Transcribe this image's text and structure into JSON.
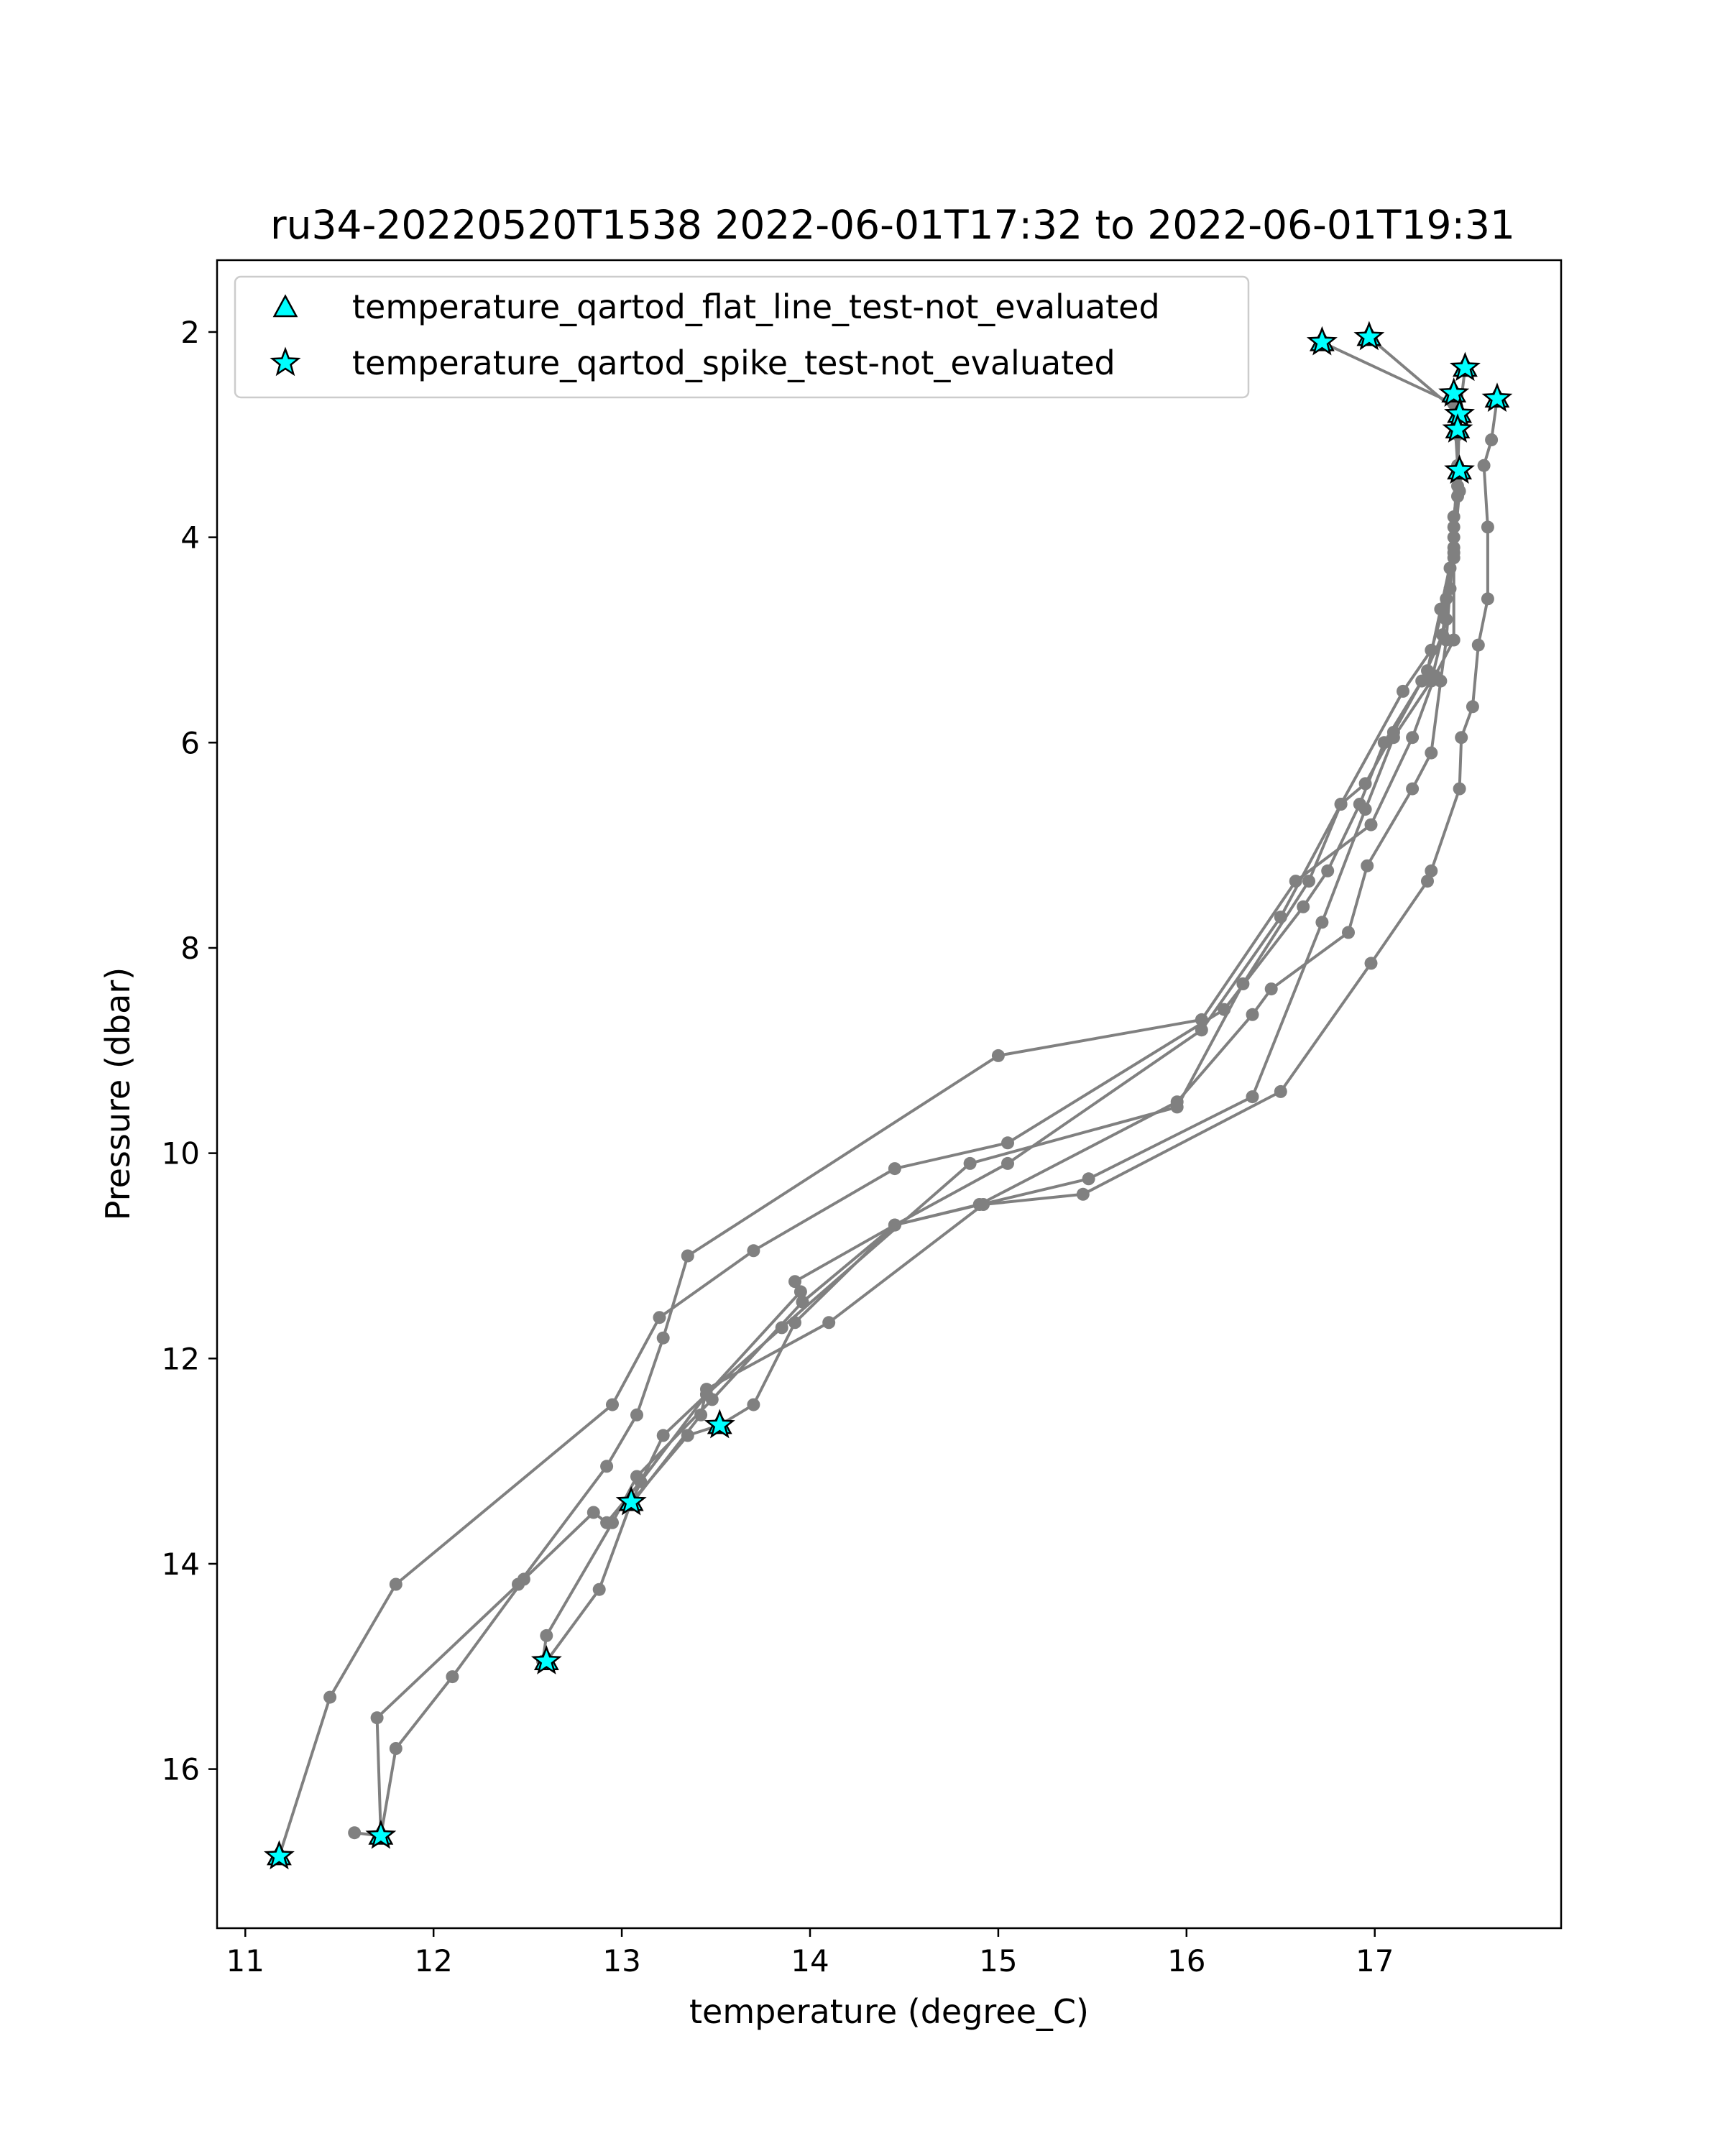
{
  "chart_data": {
    "type": "line",
    "title": "ru34-20220520T1538 2022-06-01T17:32 to 2022-06-01T19:31",
    "xlabel": "temperature (degree_C)",
    "ylabel": "Pressure (dbar)",
    "xlim": [
      10.85,
      17.99
    ],
    "ylim": [
      17.55,
      1.3
    ],
    "y_inverted": true,
    "grid": false,
    "legend_placement": "upper-left",
    "x_ticks": [
      "11",
      "12",
      "13",
      "14",
      "15",
      "16",
      "17"
    ],
    "y_ticks": [
      "2",
      "4",
      "6",
      "8",
      "10",
      "12",
      "14",
      "16"
    ],
    "colors": {
      "profile_line": "#808080",
      "flag_fill": "#00ffff",
      "flag_edge": "#000000"
    },
    "legend": [
      {
        "marker": "triangle",
        "label": "temperature_qartod_flat_line_test-not_evaluated"
      },
      {
        "marker": "star",
        "label": "temperature_qartod_spike_test-not_evaluated"
      }
    ],
    "profiles": [
      {
        "points": [
          [
            16.72,
            2.1
          ],
          [
            17.42,
            2.7
          ],
          [
            17.44,
            3.3
          ],
          [
            17.42,
            3.9
          ],
          [
            17.4,
            4.5
          ],
          [
            17.38,
            5.0
          ],
          [
            17.35,
            5.4
          ],
          [
            17.3,
            6.1
          ],
          [
            17.2,
            6.45
          ],
          [
            16.96,
            7.2
          ],
          [
            16.86,
            7.85
          ],
          [
            16.45,
            8.4
          ],
          [
            16.35,
            8.65
          ],
          [
            15.95,
            9.5
          ],
          [
            14.9,
            10.5
          ],
          [
            14.45,
            10.7
          ],
          [
            13.92,
            11.65
          ],
          [
            13.7,
            12.45
          ],
          [
            13.52,
            12.65
          ],
          [
            13.35,
            12.75
          ],
          [
            13.05,
            13.4
          ],
          [
            12.88,
            14.25
          ],
          [
            12.6,
            14.95
          ]
        ]
      },
      {
        "points": [
          [
            16.97,
            2.05
          ],
          [
            17.45,
            2.8
          ],
          [
            17.44,
            3.4
          ],
          [
            17.42,
            4.0
          ],
          [
            17.38,
            4.6
          ],
          [
            17.3,
            5.1
          ],
          [
            17.15,
            5.5
          ],
          [
            16.82,
            6.6
          ],
          [
            16.65,
            7.35
          ],
          [
            16.3,
            8.35
          ],
          [
            15.95,
            9.55
          ],
          [
            14.85,
            10.1
          ],
          [
            13.85,
            11.7
          ],
          [
            13.45,
            12.35
          ],
          [
            13.1,
            13.2
          ],
          [
            12.92,
            13.6
          ],
          [
            12.85,
            13.5
          ],
          [
            12.48,
            14.15
          ],
          [
            12.1,
            15.1
          ],
          [
            11.8,
            15.8
          ],
          [
            11.72,
            16.65
          ]
        ]
      },
      {
        "points": [
          [
            17.48,
            2.35
          ],
          [
            17.44,
            2.95
          ],
          [
            17.44,
            3.5
          ],
          [
            17.42,
            4.1
          ],
          [
            17.35,
            4.7
          ],
          [
            17.28,
            5.3
          ],
          [
            17.1,
            5.9
          ],
          [
            16.95,
            6.4
          ],
          [
            16.82,
            6.6
          ],
          [
            16.5,
            7.7
          ],
          [
            16.08,
            8.8
          ],
          [
            15.05,
            10.1
          ],
          [
            14.45,
            10.7
          ],
          [
            13.96,
            11.45
          ],
          [
            13.48,
            12.4
          ],
          [
            13.08,
            13.15
          ],
          [
            12.95,
            13.6
          ],
          [
            12.6,
            14.7
          ],
          [
            12.58,
            14.95
          ]
        ]
      },
      {
        "points": [
          [
            17.65,
            2.65
          ],
          [
            17.62,
            3.05
          ],
          [
            17.58,
            3.3
          ],
          [
            17.6,
            3.9
          ],
          [
            17.6,
            4.6
          ],
          [
            17.55,
            5.05
          ],
          [
            17.52,
            5.65
          ],
          [
            17.46,
            5.95
          ],
          [
            17.45,
            6.45
          ],
          [
            17.3,
            7.25
          ],
          [
            17.28,
            7.35
          ],
          [
            16.98,
            8.15
          ],
          [
            16.5,
            9.4
          ],
          [
            15.45,
            10.4
          ],
          [
            14.92,
            10.5
          ],
          [
            14.1,
            11.65
          ],
          [
            13.45,
            12.3
          ],
          [
            13.42,
            12.55
          ],
          [
            13.05,
            13.42
          ]
        ]
      },
      {
        "points": [
          [
            17.42,
            2.6
          ],
          [
            17.44,
            3.0
          ],
          [
            17.44,
            3.6
          ],
          [
            17.42,
            4.2
          ],
          [
            17.42,
            5.0
          ],
          [
            17.32,
            5.35
          ],
          [
            17.2,
            5.95
          ],
          [
            16.98,
            6.8
          ],
          [
            16.58,
            7.35
          ],
          [
            16.08,
            8.7
          ],
          [
            15.0,
            9.05
          ],
          [
            13.35,
            11.0
          ],
          [
            13.22,
            11.8
          ],
          [
            13.08,
            12.55
          ],
          [
            12.92,
            13.05
          ],
          [
            12.45,
            14.2
          ],
          [
            11.7,
            15.5
          ],
          [
            11.72,
            16.65
          ]
        ]
      },
      {
        "points": [
          [
            17.45,
            3.35
          ],
          [
            17.42,
            3.8
          ],
          [
            17.4,
            4.3
          ],
          [
            17.36,
            4.95
          ],
          [
            17.25,
            5.4
          ],
          [
            17.05,
            6.0
          ],
          [
            16.92,
            6.6
          ],
          [
            16.75,
            7.25
          ],
          [
            16.62,
            7.6
          ],
          [
            16.2,
            8.6
          ],
          [
            15.05,
            9.9
          ],
          [
            14.45,
            10.15
          ],
          [
            13.7,
            10.95
          ],
          [
            13.2,
            11.6
          ],
          [
            12.95,
            12.45
          ],
          [
            11.8,
            14.2
          ],
          [
            11.45,
            15.3
          ],
          [
            11.18,
            16.85
          ]
        ]
      },
      {
        "points": [
          [
            17.45,
            3.55
          ],
          [
            17.42,
            4.15
          ],
          [
            17.38,
            4.8
          ],
          [
            17.3,
            5.4
          ],
          [
            17.1,
            5.95
          ],
          [
            16.95,
            6.65
          ],
          [
            16.72,
            7.75
          ],
          [
            16.35,
            9.45
          ],
          [
            15.48,
            10.25
          ],
          [
            14.45,
            10.7
          ],
          [
            13.92,
            11.25
          ],
          [
            13.95,
            11.35
          ],
          [
            13.45,
            12.35
          ],
          [
            13.22,
            12.75
          ],
          [
            13.05,
            13.4
          ]
        ]
      },
      {
        "points": [
          [
            11.58,
            16.62
          ],
          [
            11.72,
            16.65
          ]
        ]
      }
    ],
    "flagged_points": {
      "temperature_qartod_flat_line_test-not_evaluated": [
        [
          16.72,
          2.1
        ],
        [
          16.97,
          2.05
        ],
        [
          17.48,
          2.35
        ],
        [
          17.65,
          2.65
        ],
        [
          17.42,
          2.6
        ],
        [
          17.45,
          2.8
        ],
        [
          17.44,
          2.95
        ],
        [
          17.45,
          3.35
        ],
        [
          13.52,
          12.65
        ],
        [
          13.05,
          13.4
        ],
        [
          12.6,
          14.95
        ],
        [
          11.72,
          16.65
        ],
        [
          11.18,
          16.85
        ]
      ],
      "temperature_qartod_spike_test-not_evaluated": [
        [
          16.72,
          2.1
        ],
        [
          16.97,
          2.05
        ],
        [
          17.48,
          2.35
        ],
        [
          17.65,
          2.65
        ],
        [
          17.42,
          2.6
        ],
        [
          17.45,
          2.8
        ],
        [
          17.44,
          2.95
        ],
        [
          17.45,
          3.35
        ],
        [
          13.52,
          12.65
        ],
        [
          13.05,
          13.4
        ],
        [
          12.6,
          14.95
        ],
        [
          11.72,
          16.65
        ],
        [
          11.18,
          16.85
        ]
      ]
    }
  }
}
